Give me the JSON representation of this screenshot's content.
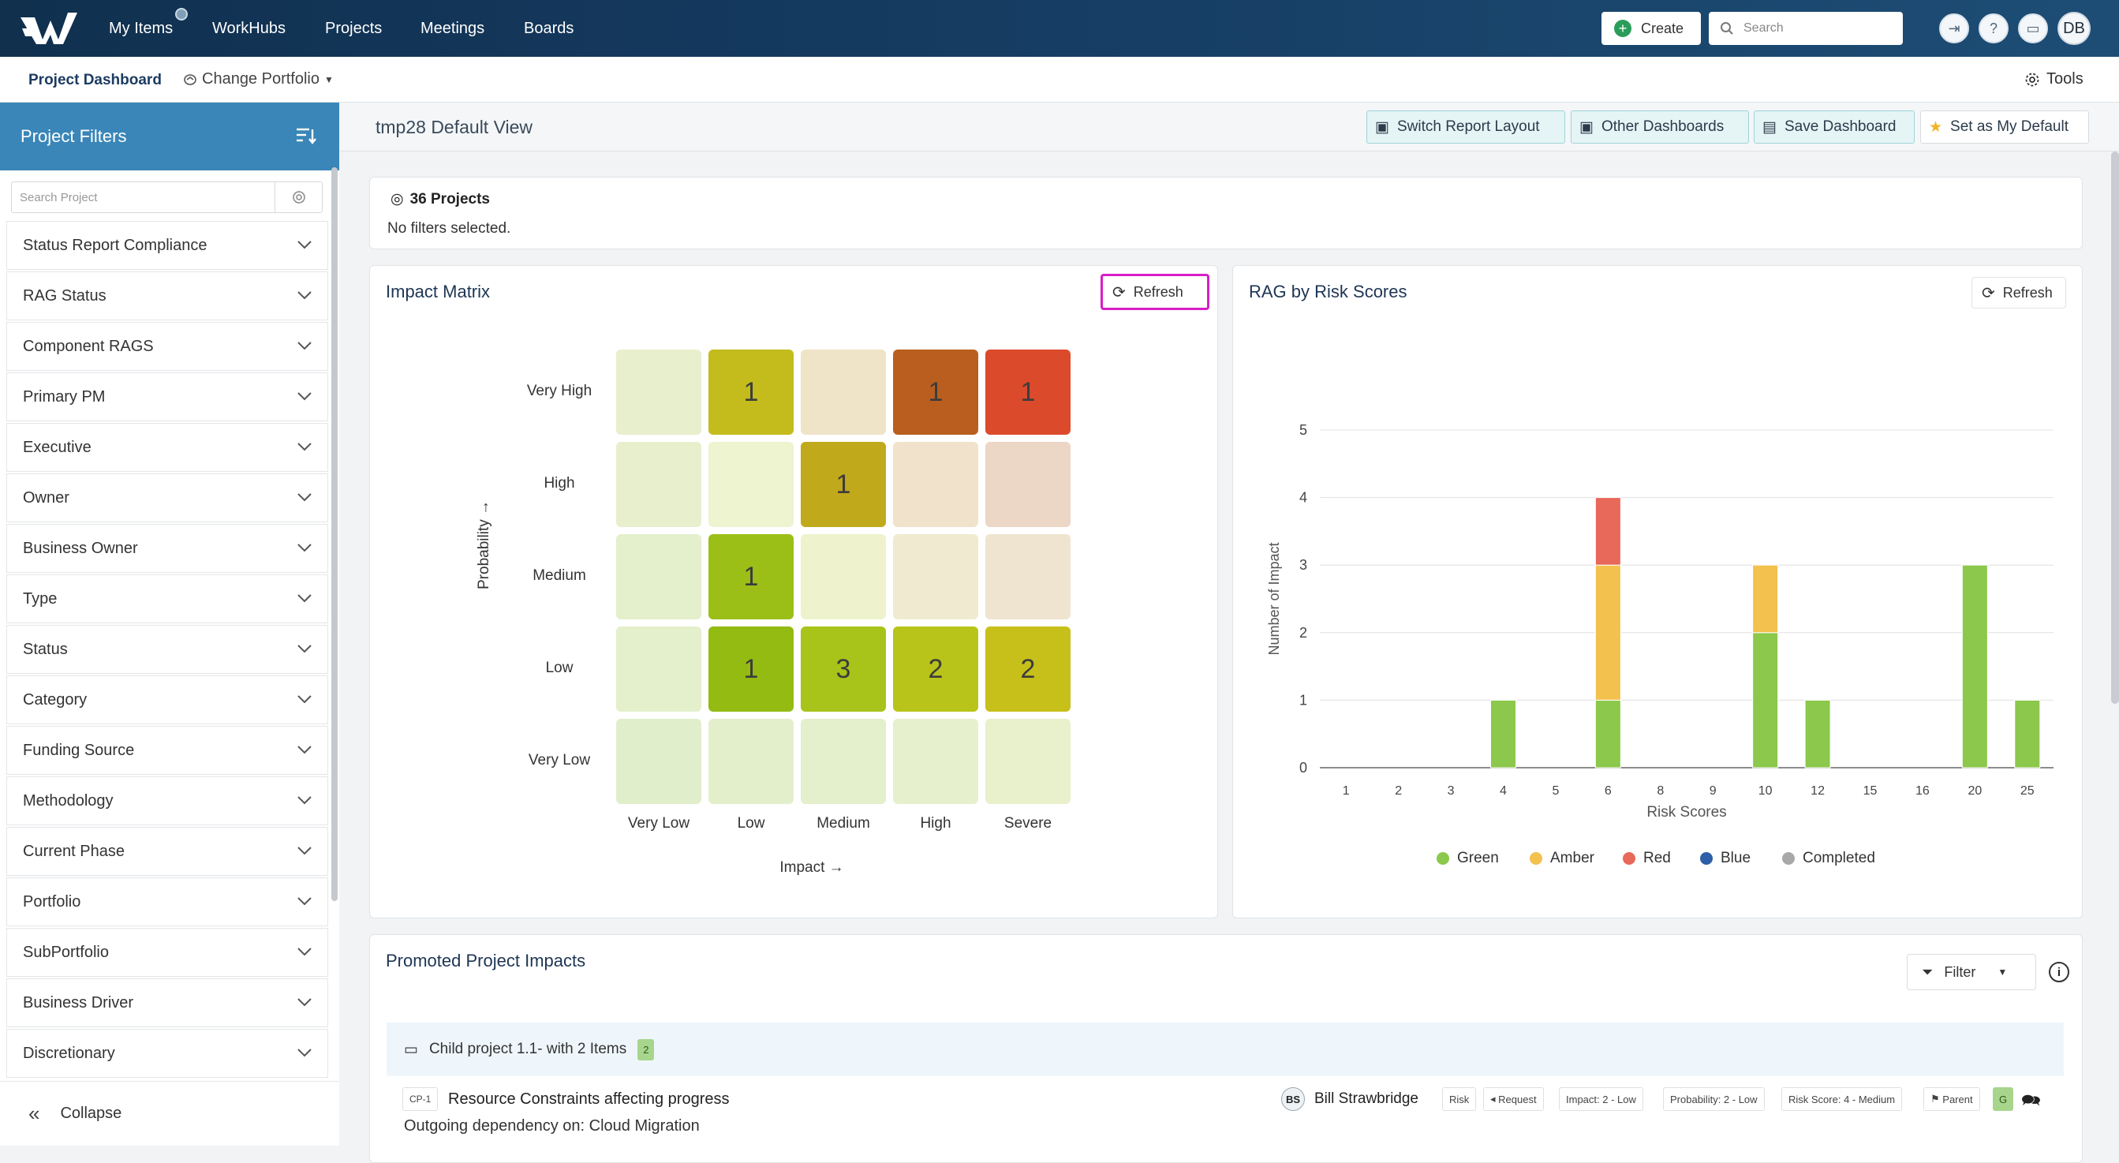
{
  "nav": {
    "items": [
      "My Items",
      "WorkHubs",
      "Projects",
      "Meetings",
      "Boards"
    ],
    "create_label": "Create",
    "search_placeholder": "Search",
    "avatar_initials": "DB"
  },
  "subnav": {
    "dashboard_label": "Project Dashboard",
    "change_portfolio_label": "Change Portfolio",
    "tools_label": "Tools"
  },
  "sidebar": {
    "title": "Project Filters",
    "search_placeholder": "Search Project",
    "filters": [
      "Status Report Compliance",
      "RAG Status",
      "Component RAGS",
      "Primary PM",
      "Executive",
      "Owner",
      "Business Owner",
      "Type",
      "Status",
      "Category",
      "Funding Source",
      "Methodology",
      "Current Phase",
      "Portfolio",
      "SubPortfolio",
      "Business Driver",
      "Discretionary"
    ],
    "collapse_label": "Collapse"
  },
  "header": {
    "view_title": "tmp28 Default View",
    "buttons": {
      "switch_layout": "Switch Report Layout",
      "other_dashboards": "Other Dashboards",
      "save_dashboard": "Save Dashboard",
      "set_default": "Set as My Default"
    }
  },
  "summary": {
    "projects_count": "36 Projects",
    "filters_text": "No filters selected."
  },
  "impact_matrix": {
    "title": "Impact Matrix",
    "refresh_label": "Refresh",
    "y_axis_label": "Probability →",
    "x_axis_label": "Impact →",
    "rows": [
      "Very High",
      "High",
      "Medium",
      "Low",
      "Very Low"
    ],
    "cols": [
      "Very Low",
      "Low",
      "Medium",
      "High",
      "Severe"
    ],
    "counts": [
      [
        "",
        "1",
        "",
        "1",
        "1"
      ],
      [
        "",
        "",
        "1",
        "",
        ""
      ],
      [
        "",
        "1",
        "",
        "",
        ""
      ],
      [
        "",
        "1",
        "3",
        "2",
        "2"
      ],
      [
        "",
        "",
        "",
        "",
        ""
      ]
    ],
    "colors": [
      [
        "#e8efcc",
        "#c3bc1c",
        "#f0e4c8",
        "#ba5e1f",
        "#dc4a2c"
      ],
      [
        "#e8efcc",
        "#eef3d0",
        "#c1a91c",
        "#f1e3cb",
        "#ecd6c6"
      ],
      [
        "#e4efcc",
        "#9cbf17",
        "#eff3cd",
        "#f0ead0",
        "#efe4cf"
      ],
      [
        "#e4efcc",
        "#94bb12",
        "#a8c31a",
        "#b8c41a",
        "#c7bf1a"
      ],
      [
        "#e1eecb",
        "#e3efcb",
        "#e4efcc",
        "#e6f0cc",
        "#e8f0cc"
      ]
    ]
  },
  "chart_data": {
    "type": "bar",
    "title": "RAG by Risk Scores",
    "xlabel": "Risk Scores",
    "ylabel": "Number of Impact",
    "categories": [
      "1",
      "2",
      "3",
      "4",
      "5",
      "6",
      "8",
      "9",
      "10",
      "12",
      "15",
      "16",
      "20",
      "25"
    ],
    "ylim": [
      0,
      5
    ],
    "yticks": [
      0,
      1,
      2,
      3,
      4,
      5
    ],
    "stacked": true,
    "grid": true,
    "legend": "bottom",
    "series": [
      {
        "name": "Green",
        "color": "#8cc84b",
        "values": [
          0,
          0,
          0,
          1,
          0,
          1,
          0,
          0,
          2,
          1,
          0,
          0,
          3,
          1
        ]
      },
      {
        "name": "Amber",
        "color": "#f2c14e",
        "values": [
          0,
          0,
          0,
          0,
          0,
          2,
          0,
          0,
          1,
          0,
          0,
          0,
          0,
          0
        ]
      },
      {
        "name": "Red",
        "color": "#e8685a",
        "values": [
          0,
          0,
          0,
          0,
          0,
          1,
          0,
          0,
          0,
          0,
          0,
          0,
          0,
          0
        ]
      },
      {
        "name": "Blue",
        "color": "#2f5fa8",
        "values": [
          0,
          0,
          0,
          0,
          0,
          0,
          0,
          0,
          0,
          0,
          0,
          0,
          0,
          0
        ]
      },
      {
        "name": "Completed",
        "color": "#a8a8a8",
        "values": [
          0,
          0,
          0,
          0,
          0,
          0,
          0,
          0,
          0,
          0,
          0,
          0,
          0,
          0
        ]
      }
    ]
  },
  "rag_chart": {
    "refresh_label": "Refresh"
  },
  "promoted": {
    "title": "Promoted Project Impacts",
    "filter_label": "Filter",
    "group_label": "Child project 1.1- with 2 Items",
    "group_count": "2",
    "item": {
      "code": "CP-1",
      "title": "Resource Constraints affecting progress",
      "subtitle": "Outgoing dependency on: Cloud Migration",
      "owner_initials": "BS",
      "owner_name": "Bill Strawbridge",
      "tags": [
        "Risk",
        "Request",
        "Impact: 2 - Low",
        "Probability: 2 - Low",
        "Risk Score: 4 - Medium",
        "Parent"
      ],
      "rag_badge": "G"
    }
  }
}
